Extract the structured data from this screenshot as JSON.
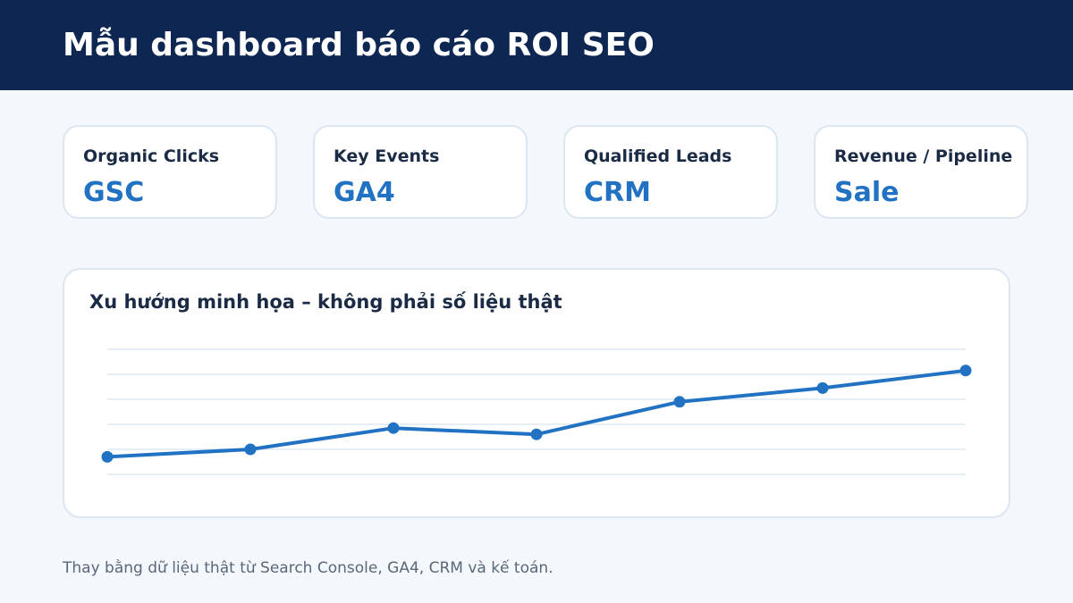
{
  "header": {
    "title": "Mẫu dashboard báo cáo ROI SEO"
  },
  "cards": [
    {
      "label": "Organic Clicks",
      "value": "GSC"
    },
    {
      "label": "Key Events",
      "value": "GA4"
    },
    {
      "label": "Qualified Leads",
      "value": "CRM"
    },
    {
      "label": "Revenue / Pipeline",
      "value": "Sale"
    }
  ],
  "panel": {
    "title": "Xu hướng minh họa – không phải số liệu thật"
  },
  "footnote": "Thay bằng dữ liệu thật từ Search Console, GA4, CRM và kế toán.",
  "colors": {
    "header_bg": "#0e2752",
    "accent": "#2272c3",
    "grid": "#dfe8f2"
  },
  "chart_data": {
    "type": "line",
    "title": "Xu hướng minh họa – không phải số liệu thật",
    "x": [
      1,
      2,
      3,
      4,
      5,
      6,
      7
    ],
    "series": [
      {
        "values": [
          0.7,
          1.0,
          1.85,
          1.6,
          2.9,
          3.45,
          4.15
        ]
      }
    ],
    "ylim": [
      0,
      5
    ],
    "grid": true,
    "legend": "none"
  }
}
